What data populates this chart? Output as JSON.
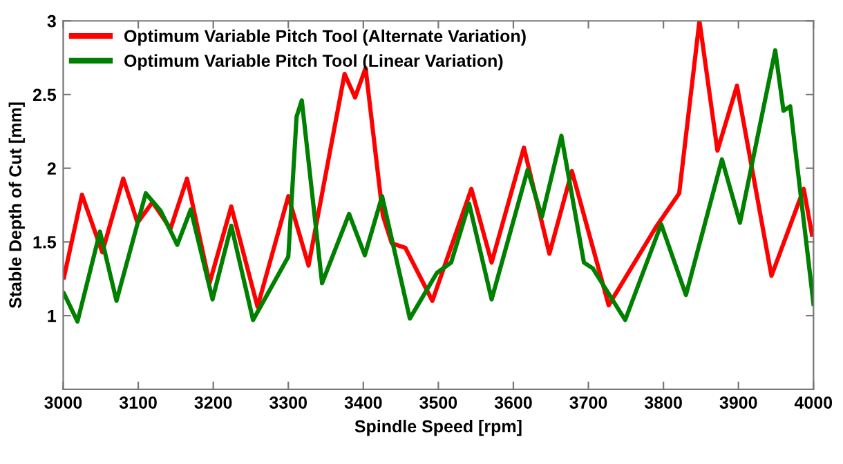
{
  "chart_data": {
    "type": "line",
    "xlabel": "Spindle Speed [rpm]",
    "ylabel": "Stable Depth of Cut [mm]",
    "xlim": [
      3000,
      4000
    ],
    "xticks": [
      3000,
      3100,
      3200,
      3300,
      3400,
      3500,
      3600,
      3700,
      3800,
      3900,
      4000
    ],
    "ylim": [
      0.5,
      3
    ],
    "yticks": [
      1,
      1.5,
      2,
      2.5,
      3
    ],
    "grid": false,
    "legend": "top left",
    "marker": "none",
    "line_style": "solid",
    "series": [
      {
        "name": "Optimum Variable Pitch Tool (Alternate Variation)",
        "color": "#ff0000",
        "x": [
          3001,
          3025,
          3052,
          3080,
          3099,
          3119,
          3143,
          3165,
          3195,
          3224,
          3259,
          3300,
          3327,
          3375,
          3389,
          3403,
          3426,
          3438,
          3456,
          3492,
          3544,
          3571,
          3614,
          3648,
          3678,
          3727,
          3790,
          3821,
          3848,
          3872,
          3898,
          3944,
          3987,
          3998
        ],
        "values": [
          1.26,
          1.82,
          1.43,
          1.93,
          1.63,
          1.77,
          1.59,
          1.93,
          1.22,
          1.74,
          1.06,
          1.81,
          1.34,
          2.64,
          2.48,
          2.68,
          1.68,
          1.49,
          1.46,
          1.1,
          1.86,
          1.36,
          2.14,
          1.42,
          1.98,
          1.07,
          1.6,
          1.83,
          3.0,
          2.12,
          2.56,
          1.27,
          1.86,
          1.55
        ]
      },
      {
        "name": "Optimum Variable Pitch Tool (Linear Variation)",
        "color": "#008000",
        "x": [
          3001,
          3019,
          3049,
          3071,
          3110,
          3130,
          3152,
          3170,
          3199,
          3224,
          3253,
          3300,
          3311,
          3318,
          3345,
          3381,
          3402,
          3425,
          3462,
          3498,
          3517,
          3541,
          3571,
          3619,
          3638,
          3664,
          3694,
          3706,
          3749,
          3797,
          3830,
          3878,
          3902,
          3949,
          3960,
          3969,
          4000
        ],
        "values": [
          1.15,
          0.96,
          1.57,
          1.1,
          1.83,
          1.71,
          1.48,
          1.72,
          1.11,
          1.61,
          0.97,
          1.4,
          2.35,
          2.46,
          1.22,
          1.69,
          1.41,
          1.81,
          0.98,
          1.29,
          1.36,
          1.76,
          1.11,
          1.99,
          1.67,
          2.22,
          1.36,
          1.32,
          0.97,
          1.62,
          1.14,
          2.06,
          1.63,
          2.8,
          2.39,
          2.42,
          1.08
        ]
      }
    ]
  }
}
